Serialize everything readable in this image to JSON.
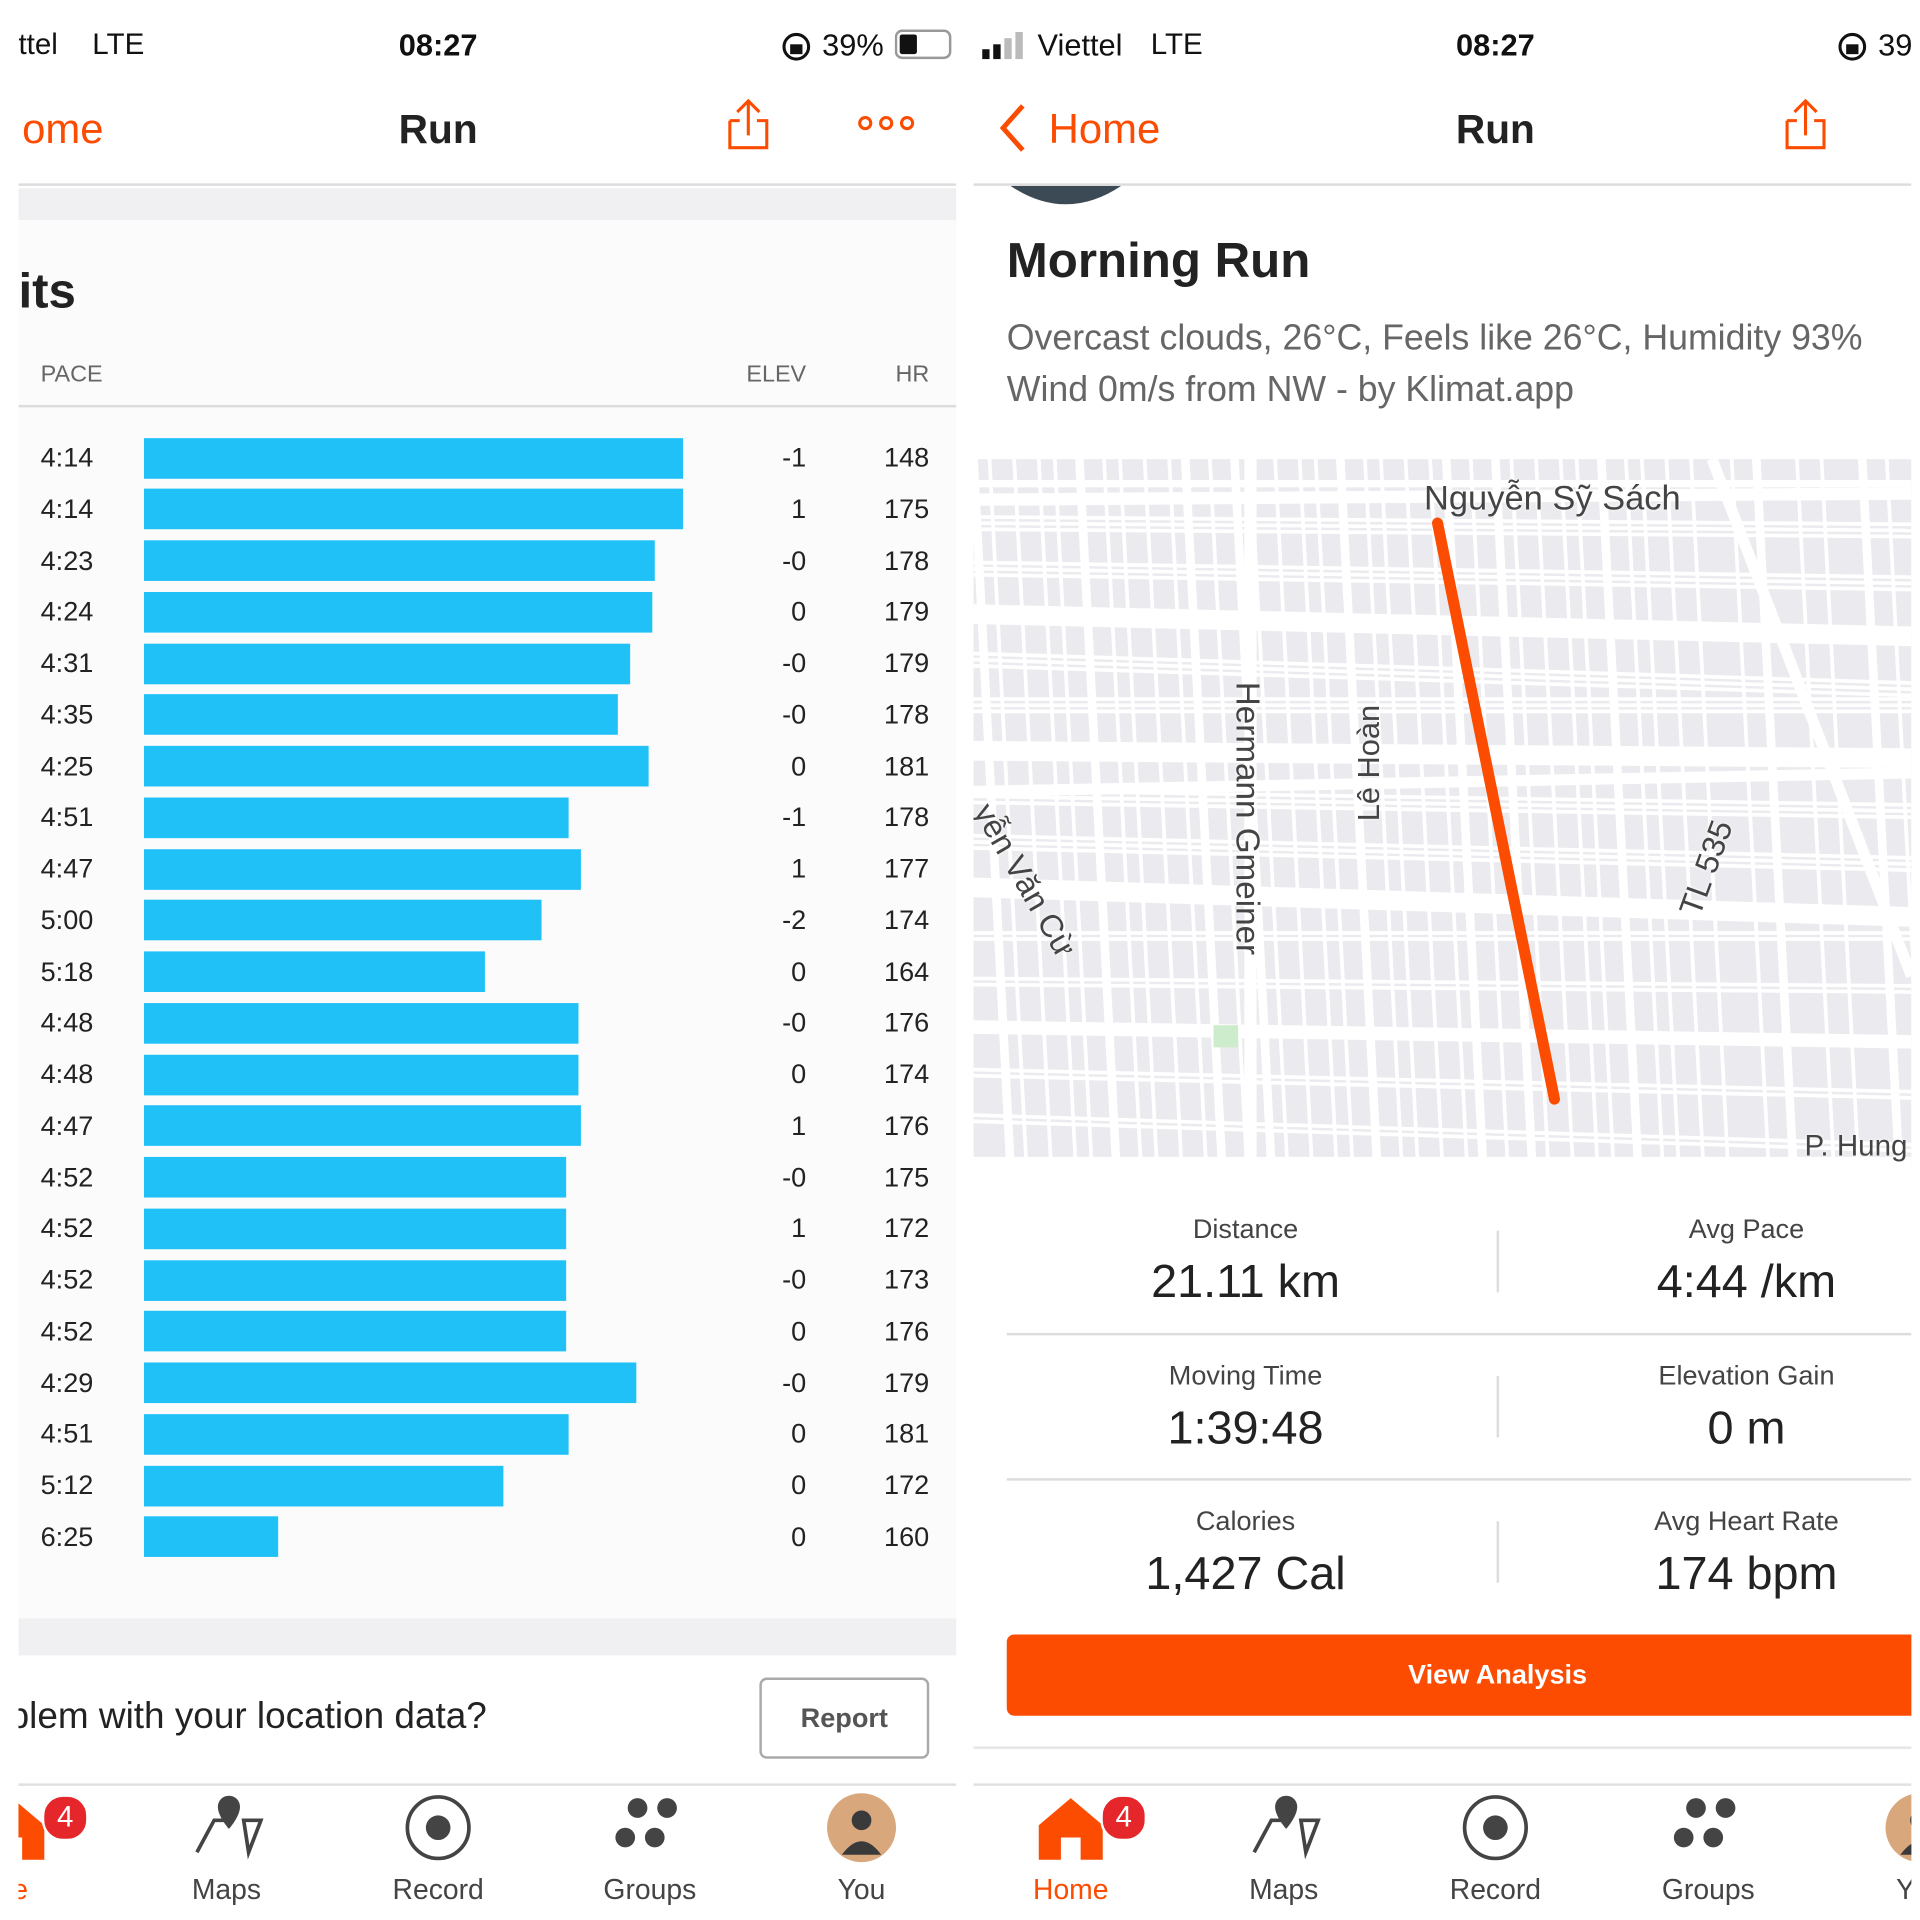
{
  "left": {
    "status": {
      "carrier": "ttel",
      "network": "LTE",
      "time": "08:27",
      "battery": "39%"
    },
    "nav": {
      "back": "ome",
      "title": "Run"
    },
    "splits": {
      "heading": "its",
      "columns": [
        "PACE",
        "ELEV",
        "HR"
      ],
      "rows": [
        [
          "4:14",
          "-1",
          "148"
        ],
        [
          "4:14",
          "1",
          "175"
        ],
        [
          "4:23",
          "-0",
          "178"
        ],
        [
          "4:24",
          "0",
          "179"
        ],
        [
          "4:31",
          "-0",
          "179"
        ],
        [
          "4:35",
          "-0",
          "178"
        ],
        [
          "4:25",
          "0",
          "181"
        ],
        [
          "4:51",
          "-1",
          "178"
        ],
        [
          "4:47",
          "1",
          "177"
        ],
        [
          "5:00",
          "-2",
          "174"
        ],
        [
          "5:18",
          "0",
          "164"
        ],
        [
          "4:48",
          "-0",
          "176"
        ],
        [
          "4:48",
          "0",
          "174"
        ],
        [
          "4:47",
          "1",
          "176"
        ],
        [
          "4:52",
          "-0",
          "175"
        ],
        [
          "4:52",
          "1",
          "172"
        ],
        [
          "4:52",
          "-0",
          "173"
        ],
        [
          "4:52",
          "0",
          "176"
        ],
        [
          "4:29",
          "-0",
          "179"
        ],
        [
          "4:51",
          "0",
          "181"
        ],
        [
          "5:12",
          "0",
          "172"
        ],
        [
          "6:25",
          "0",
          "160"
        ]
      ]
    },
    "report": {
      "question": "blem with your location data?",
      "button": "Report"
    },
    "tabbar": [
      {
        "label": "ne",
        "badge": "4"
      },
      {
        "label": "Maps"
      },
      {
        "label": "Record"
      },
      {
        "label": "Groups"
      },
      {
        "label": "You"
      }
    ]
  },
  "right": {
    "status": {
      "carrier": "Viettel",
      "network": "LTE",
      "time": "08:27",
      "battery": "39"
    },
    "nav": {
      "back": "Home",
      "title": "Run"
    },
    "activity": {
      "title": "Morning Run",
      "weather": "Overcast clouds, 26°C, Feels like 26°C, Humidity 93%",
      "wind": "Wind 0m/s from NW - by Klimat.app"
    },
    "map": {
      "labels": [
        "Nguyễn Sỹ Sách",
        "Hermann Gmeiner",
        "Lê Hoàn",
        "TL 535",
        "yễn Văn Cừ",
        "P. Hung"
      ]
    },
    "stats": [
      {
        "label": "Distance",
        "value": "21.11 km"
      },
      {
        "label": "Avg Pace",
        "value": "4:44 /km"
      },
      {
        "label": "Moving Time",
        "value": "1:39:48"
      },
      {
        "label": "Elevation Gain",
        "value": "0 m"
      },
      {
        "label": "Calories",
        "value": "1,427 Cal"
      },
      {
        "label": "Avg Heart Rate",
        "value": "174 bpm"
      }
    ],
    "button": "View Analysis",
    "tabbar": [
      {
        "label": "Home",
        "badge": "4"
      },
      {
        "label": "Maps"
      },
      {
        "label": "Record"
      },
      {
        "label": "Groups"
      },
      {
        "label": "You"
      }
    ]
  }
}
